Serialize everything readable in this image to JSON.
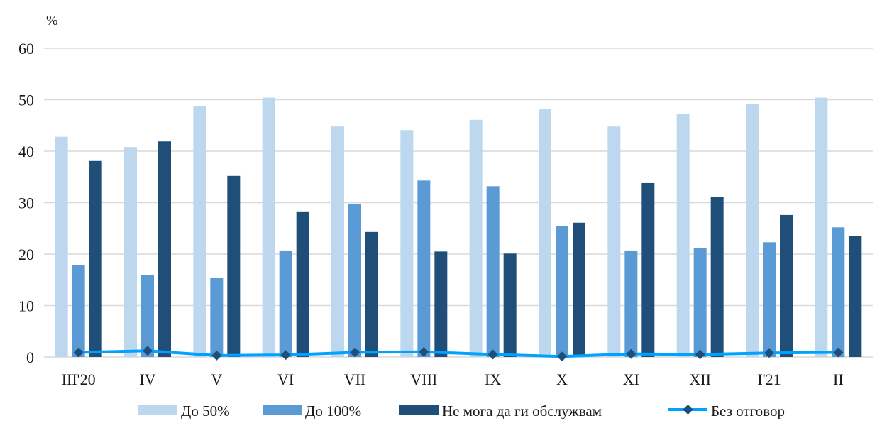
{
  "chart_data": {
    "type": "bar",
    "unit_label": "%",
    "categories": [
      "III'20",
      "IV",
      "V",
      "VI",
      "VII",
      "VIII",
      "IX",
      "X",
      "XI",
      "XII",
      "I'21",
      "II"
    ],
    "ylim": [
      0,
      60
    ],
    "yticks": [
      0,
      10,
      20,
      30,
      40,
      50,
      60
    ],
    "grid": true,
    "legend_position": "bottom",
    "series": [
      {
        "name": "До 50%",
        "type": "bar",
        "color": "#bdd7ee",
        "values": [
          42.8,
          40.8,
          48.8,
          50.4,
          44.8,
          44.1,
          46.1,
          48.2,
          44.8,
          47.2,
          49.1,
          50.4
        ]
      },
      {
        "name": "До 100%",
        "type": "bar",
        "color": "#5b9bd5",
        "values": [
          17.9,
          15.9,
          15.4,
          20.7,
          29.8,
          34.3,
          33.2,
          25.4,
          20.7,
          21.2,
          22.3,
          25.2
        ]
      },
      {
        "name": "Не мога да ги обслужвам",
        "type": "bar",
        "color": "#1f4e79",
        "values": [
          38.1,
          41.9,
          35.2,
          28.3,
          24.3,
          20.5,
          20.1,
          26.1,
          33.8,
          31.1,
          27.6,
          23.5
        ]
      },
      {
        "name": "Без отговор",
        "type": "line",
        "color": "#00a2ff",
        "marker_color": "#1f4e79",
        "values": [
          0.9,
          1.2,
          0.3,
          0.4,
          0.9,
          1.0,
          0.5,
          0.1,
          0.6,
          0.5,
          0.8,
          0.9
        ]
      }
    ]
  }
}
